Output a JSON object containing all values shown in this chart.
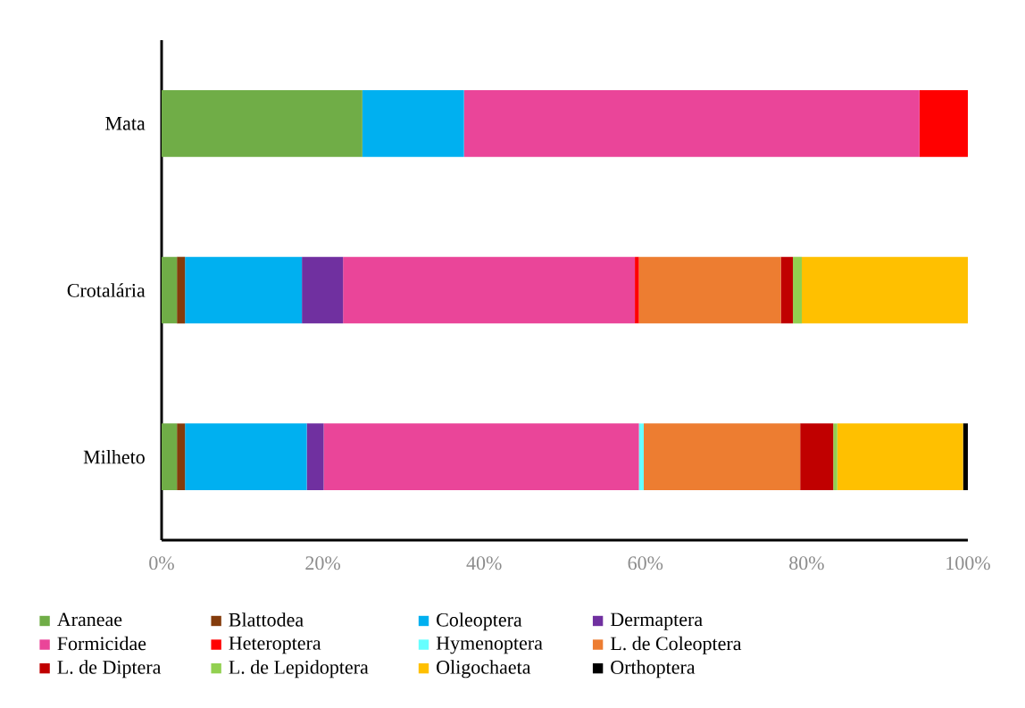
{
  "chart_data": {
    "type": "bar",
    "orientation": "horizontal",
    "stacked": true,
    "categories": [
      "Mata",
      "Crotalária",
      "Milheto"
    ],
    "series": [
      {
        "name": "Araneae",
        "color": "#70ad47",
        "values": [
          24.9,
          1.9,
          1.9
        ]
      },
      {
        "name": "Blattodea",
        "color": "#843c0c",
        "values": [
          null,
          1.0,
          1.0
        ]
      },
      {
        "name": "Coleoptera",
        "color": "#00b0f0",
        "values": [
          12.6,
          14.5,
          15.1
        ]
      },
      {
        "name": "Dermaptera",
        "color": "#7030a0",
        "values": [
          null,
          5.1,
          2.1
        ]
      },
      {
        "name": "Formicidae",
        "color": "#ea4599",
        "values": [
          56.5,
          36.2,
          39.1
        ]
      },
      {
        "name": "Heteroptera",
        "color": "#ff0000",
        "values": [
          6.0,
          0.5,
          null
        ]
      },
      {
        "name": "Hymenoptera",
        "color": "#66ffff",
        "values": [
          null,
          null,
          0.6
        ]
      },
      {
        "name": "L. de Coleoptera",
        "color": "#ed7d31",
        "values": [
          null,
          17.6,
          19.4
        ]
      },
      {
        "name": "L. de Diptera",
        "color": "#c00000",
        "values": [
          null,
          1.5,
          4.1
        ]
      },
      {
        "name": "L. de Lepidoptera",
        "color": "#92d050",
        "values": [
          null,
          1.1,
          0.5
        ]
      },
      {
        "name": "Oligochaeta",
        "color": "#ffc000",
        "values": [
          null,
          20.6,
          15.6
        ]
      },
      {
        "name": "Orthoptera",
        "color": "#000000",
        "values": [
          null,
          null,
          0.6
        ]
      }
    ],
    "xlim": [
      0,
      100
    ],
    "xticks": [
      {
        "value": 0,
        "label": "0%"
      },
      {
        "value": 20,
        "label": "20%"
      },
      {
        "value": 40,
        "label": "40%"
      },
      {
        "value": 60,
        "label": "60%"
      },
      {
        "value": 80,
        "label": "80%"
      },
      {
        "value": 100,
        "label": "100%"
      }
    ],
    "legend": "bottom"
  }
}
